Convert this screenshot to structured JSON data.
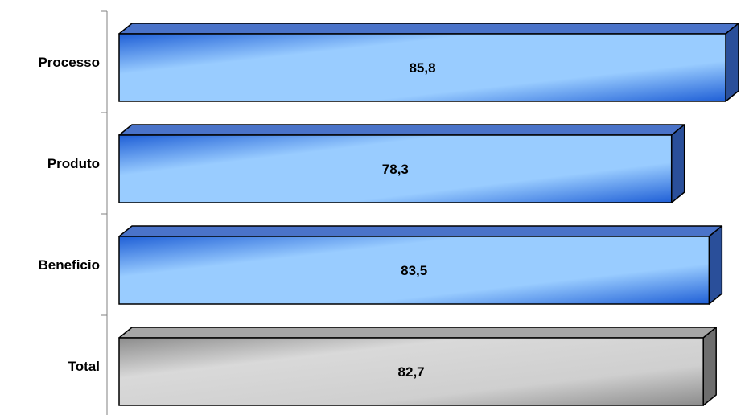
{
  "chart_data": {
    "type": "bar",
    "orientation": "horizontal",
    "style": "3d",
    "categories": [
      "Processo",
      "Produto",
      "Beneficio",
      "Total"
    ],
    "values": [
      85.8,
      78.3,
      83.5,
      82.7
    ],
    "value_labels": [
      "85,8",
      "78,3",
      "83,5",
      "82,7"
    ],
    "bar_colors": [
      "blue",
      "blue",
      "blue",
      "gray"
    ],
    "xlim": [
      0,
      85.8
    ],
    "title": "",
    "xlabel": "",
    "ylabel": "",
    "grid": false,
    "legend": "none"
  },
  "colors": {
    "blue_light": "#99ccff",
    "blue_dark": "#1f5fd6",
    "blue_top": "#4a73c9",
    "blue_side": "#2a4f9a",
    "gray_light": "#d9d9d9",
    "gray_dark": "#8c8c8c",
    "gray_top": "#a6a6a6",
    "gray_side": "#6e6e6e",
    "outline": "#000000",
    "axis": "#808080"
  }
}
